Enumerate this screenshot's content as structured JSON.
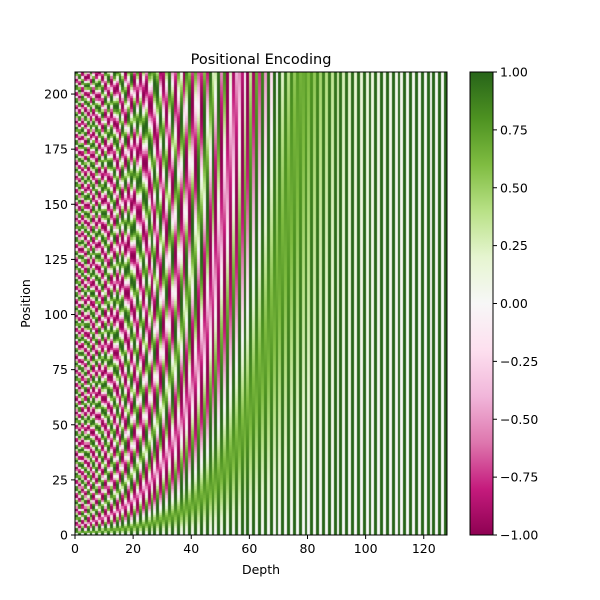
{
  "chart_data": {
    "type": "heatmap",
    "title": "Positional Encoding",
    "xlabel": "Depth",
    "ylabel": "Position",
    "xlim": [
      0,
      128
    ],
    "ylim": [
      0,
      210
    ],
    "x_ticks": [
      0,
      20,
      40,
      60,
      80,
      100,
      120
    ],
    "y_ticks": [
      0,
      25,
      50,
      75,
      100,
      125,
      150,
      175,
      200
    ],
    "matrix": {
      "rows": 210,
      "cols": 128,
      "formula": "even depth i: sin(pos / 10000^(i/128)); odd depth i: cos(pos / 10000^((i-1)/128))",
      "row_index": "position",
      "col_index": "depth"
    },
    "colorbar": {
      "colormap": "PiYG",
      "vmin": -1.0,
      "vmax": 1.0,
      "ticks": [
        "1.00",
        "0.75",
        "0.50",
        "0.25",
        "0.00",
        "−0.25",
        "−0.50",
        "−0.75",
        "−1.00"
      ],
      "colors": [
        "#8e0152",
        "#c51b7d",
        "#de77ae",
        "#f1b6da",
        "#fde0ef",
        "#f7f7f7",
        "#e6f5d0",
        "#b8e186",
        "#7fbc41",
        "#4d9221",
        "#276419"
      ]
    },
    "grid": false
  }
}
